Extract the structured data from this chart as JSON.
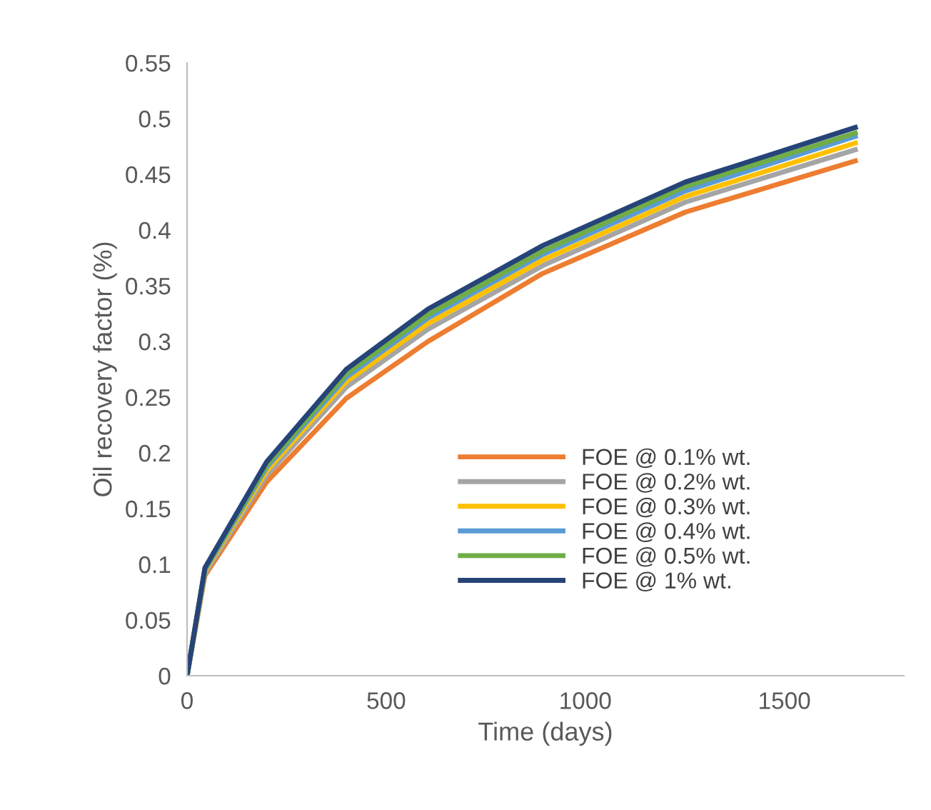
{
  "chart_data": {
    "type": "line",
    "xlabel": "Time (days)",
    "ylabel": "Oil recovery factor (%)",
    "xlim": [
      0,
      1800
    ],
    "xticks": [
      0,
      500,
      1000,
      1500
    ],
    "ylim": [
      0,
      0.55
    ],
    "yticks": [
      0,
      0.05,
      0.1,
      0.15,
      0.2,
      0.25,
      0.3,
      0.35,
      0.4,
      0.45,
      0.5,
      0.55
    ],
    "grid": false,
    "legend": "right",
    "marker": "none",
    "line_style": "solid",
    "x": [
      0,
      45,
      200,
      400,
      605,
      893,
      1251,
      1678
    ],
    "series": [
      {
        "name": "FOE @ 0.1% wt.",
        "color": "#ed7d31",
        "values": [
          0,
          0.09,
          0.174,
          0.249,
          0.3,
          0.361,
          0.416,
          0.462
        ]
      },
      {
        "name": "FOE @ 0.2% wt.",
        "color": "#a5a5a5",
        "values": [
          0,
          0.092,
          0.18,
          0.259,
          0.311,
          0.368,
          0.425,
          0.472
        ]
      },
      {
        "name": "FOE @ 0.3% wt.",
        "color": "#ffc000",
        "values": [
          0,
          0.094,
          0.184,
          0.264,
          0.316,
          0.373,
          0.43,
          0.478
        ]
      },
      {
        "name": "FOE @ 0.4% wt.",
        "color": "#5b9bd5",
        "values": [
          0,
          0.095,
          0.187,
          0.268,
          0.321,
          0.378,
          0.435,
          0.484
        ]
      },
      {
        "name": "FOE @ 0.5% wt.",
        "color": "#70ad47",
        "values": [
          0,
          0.096,
          0.189,
          0.271,
          0.324,
          0.381,
          0.439,
          0.487
        ]
      },
      {
        "name": "FOE @ 1% wt.",
        "color": "#264478",
        "values": [
          0,
          0.097,
          0.192,
          0.275,
          0.329,
          0.386,
          0.443,
          0.492
        ]
      }
    ]
  }
}
